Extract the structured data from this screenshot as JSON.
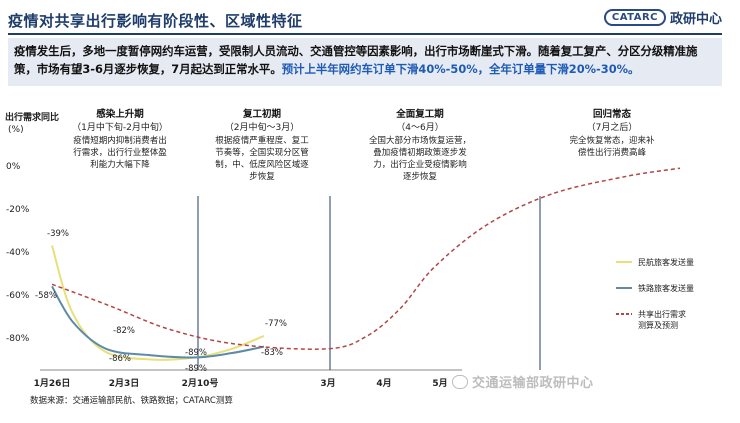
{
  "header": {
    "title": "疫情对共享出行影响有阶段性、区域性特征",
    "logo_badge": "CATARC",
    "logo_text": "政研中心"
  },
  "summary": {
    "text_black": "疫情发生后，多地一度暂停网约车运营，受限制人员流动、交通管控等因素影响，出行市场断崖式下滑。随着复工复产、分区分级精准施策，市场有望3-6月逐步恢复，7月起达到正常水平。",
    "text_blue": "预计上半年网约车订单下滑40%-50%，全年订单量下滑20%-30%。"
  },
  "chart_data": {
    "type": "line",
    "ylabel": "出行需求同比\n(%)",
    "ylim": [
      -95,
      5
    ],
    "y_ticks": [
      "0%",
      "-20%",
      "-40%",
      "-60%",
      "-80%"
    ],
    "x_ticks": [
      "1月26日",
      "2月3日",
      "2月10号",
      "3月",
      "4月",
      "5月"
    ],
    "legend_position": "right",
    "phases": [
      {
        "title": "感染上升期",
        "subtitle": "（1月中下旬-2月中旬）",
        "desc": [
          "疫情短期内抑制消费者出",
          "行需求，出行行业整体盈",
          "利能力大幅下降"
        ]
      },
      {
        "title": "复工初期",
        "subtitle": "（2月中旬～3月）",
        "desc": [
          "根据疫情严重程度、复工",
          "节奏等，全国实现分区管",
          "制，中、低度风险区域逐",
          "步恢复"
        ]
      },
      {
        "title": "全面复工期",
        "subtitle": "（4～6月）",
        "desc": [
          "全国大部分市场恢复运营，",
          "叠加疫情初期政策逐步发",
          "力，出行企业受疫情影响",
          "逐步恢复"
        ]
      },
      {
        "title": "回归常态",
        "subtitle": "（7月之后）",
        "desc": [
          "完全恢复常态，迎来补",
          "偿性出行消费高峰"
        ]
      }
    ],
    "series": [
      {
        "name": "民航旅客发送量",
        "color": "#e8e07a",
        "style": "solid",
        "points": [
          [
            0,
            -37
          ],
          [
            0.28,
            -68
          ],
          [
            0.72,
            -86
          ],
          [
            1.35,
            -90
          ],
          [
            1.95,
            -89
          ],
          [
            2.25,
            -85
          ],
          [
            2.5,
            -79
          ]
        ]
      },
      {
        "name": "铁路旅客发送量",
        "color": "#5d8aa8",
        "style": "solid",
        "points": [
          [
            0,
            -56
          ],
          [
            0.3,
            -73
          ],
          [
            0.75,
            -85
          ],
          [
            1.35,
            -88
          ],
          [
            1.95,
            -89
          ],
          [
            2.25,
            -87
          ],
          [
            2.5,
            -84
          ]
        ]
      },
      {
        "name": "共享出行需求\n测算及预测",
        "color": "#b24545",
        "style": "dashed",
        "points": [
          [
            0,
            -55
          ],
          [
            0.8,
            -65
          ],
          [
            1.6,
            -76
          ],
          [
            2.3,
            -83
          ],
          [
            3.0,
            -85
          ],
          [
            3.7,
            -79
          ],
          [
            4.3,
            -66
          ],
          [
            4.9,
            -47
          ],
          [
            5.6,
            -27
          ],
          [
            6.4,
            -13
          ],
          [
            7.3,
            -5
          ],
          [
            8.2,
            -1
          ]
        ]
      }
    ],
    "annotations": [
      "-39%",
      "-58%",
      "-82%",
      "-86%",
      "-89%",
      "-89%",
      "-77%",
      "-83%"
    ]
  },
  "footer": {
    "source": "数据来源：交通运输部民航、铁路数据；CATARC测算",
    "watermark": "交通运输部政研中心"
  }
}
